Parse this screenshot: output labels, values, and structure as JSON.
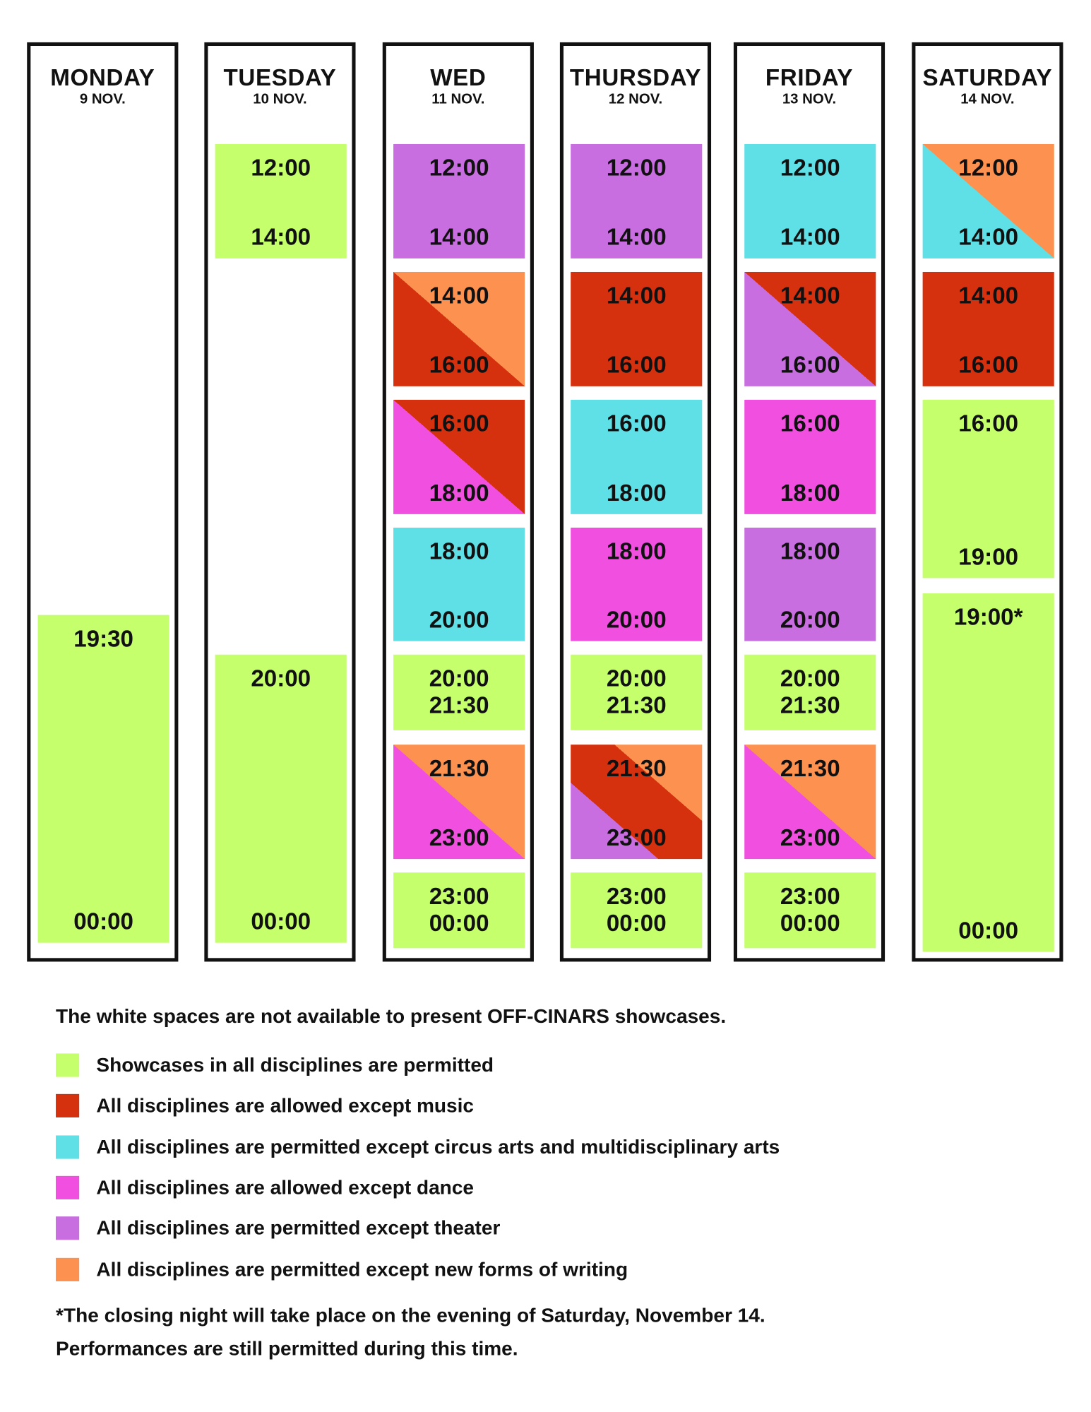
{
  "days": [
    {
      "name": "MONDAY",
      "date": "9 NOV.",
      "slots": [
        {
          "start": "19:30",
          "end": "00:00",
          "colors": [
            "#c5ff6b"
          ]
        }
      ]
    },
    {
      "name": "TUESDAY",
      "date": "10 NOV.",
      "slots": [
        {
          "start": "12:00",
          "end": "14:00",
          "colors": [
            "#c5ff6b"
          ]
        },
        {
          "start": "20:00",
          "end": "00:00",
          "colors": [
            "#c5ff6b"
          ]
        }
      ]
    },
    {
      "name": "WED",
      "date": "11 NOV.",
      "slots": [
        {
          "start": "12:00",
          "end": "14:00",
          "colors": [
            "#c86ee0"
          ]
        },
        {
          "start": "14:00",
          "end": "16:00",
          "colors": [
            "#d6310f",
            "#fd9250"
          ]
        },
        {
          "start": "16:00",
          "end": "18:00",
          "colors": [
            "#f04fdf",
            "#d6310f"
          ]
        },
        {
          "start": "18:00",
          "end": "20:00",
          "colors": [
            "#5ee0e6"
          ]
        },
        {
          "start": "20:00",
          "end": "21:30",
          "colors": [
            "#c5ff6b"
          ]
        },
        {
          "start": "21:30",
          "end": "23:00",
          "colors": [
            "#f04fdf",
            "#fd9250"
          ]
        },
        {
          "start": "23:00",
          "end": "00:00",
          "colors": [
            "#c5ff6b"
          ]
        }
      ]
    },
    {
      "name": "THURSDAY",
      "date": "12 NOV.",
      "slots": [
        {
          "start": "12:00",
          "end": "14:00",
          "colors": [
            "#c86ee0"
          ]
        },
        {
          "start": "14:00",
          "end": "16:00",
          "colors": [
            "#d6310f"
          ]
        },
        {
          "start": "16:00",
          "end": "18:00",
          "colors": [
            "#5ee0e6"
          ]
        },
        {
          "start": "18:00",
          "end": "20:00",
          "colors": [
            "#f04fdf"
          ]
        },
        {
          "start": "20:00",
          "end": "21:30",
          "colors": [
            "#c5ff6b"
          ]
        },
        {
          "start": "21:30",
          "end": "23:00",
          "colors": [
            "#c86ee0",
            "#d6310f",
            "#fd9250"
          ]
        },
        {
          "start": "23:00",
          "end": "00:00",
          "colors": [
            "#c5ff6b"
          ]
        }
      ]
    },
    {
      "name": "FRIDAY",
      "date": "13 NOV.",
      "slots": [
        {
          "start": "12:00",
          "end": "14:00",
          "colors": [
            "#5ee0e6"
          ]
        },
        {
          "start": "14:00",
          "end": "16:00",
          "colors": [
            "#c86ee0",
            "#d6310f"
          ]
        },
        {
          "start": "16:00",
          "end": "18:00",
          "colors": [
            "#f04fdf"
          ]
        },
        {
          "start": "18:00",
          "end": "20:00",
          "colors": [
            "#c86ee0"
          ]
        },
        {
          "start": "20:00",
          "end": "21:30",
          "colors": [
            "#c5ff6b"
          ]
        },
        {
          "start": "21:30",
          "end": "23:00",
          "colors": [
            "#f04fdf",
            "#fd9250"
          ]
        },
        {
          "start": "23:00",
          "end": "00:00",
          "colors": [
            "#c5ff6b"
          ]
        }
      ]
    },
    {
      "name": "SATURDAY",
      "date": "14 NOV.",
      "slots": [
        {
          "start": "12:00",
          "end": "14:00",
          "colors": [
            "#5ee0e6",
            "#fd9250"
          ]
        },
        {
          "start": "14:00",
          "end": "16:00",
          "colors": [
            "#d6310f"
          ]
        },
        {
          "start": "16:00",
          "end": "19:00",
          "colors": [
            "#c5ff6b"
          ]
        },
        {
          "start": "19:00*",
          "end": "00:00",
          "colors": [
            "#c5ff6b"
          ]
        }
      ]
    }
  ],
  "legend": {
    "note": "The white spaces are not available to present OFF-CINARS showcases.",
    "items": [
      {
        "color": "#c5ff6b",
        "label": "Showcases in all disciplines are permitted"
      },
      {
        "color": "#d6310f",
        "label": "All disciplines are allowed except music"
      },
      {
        "color": "#5ee0e6",
        "label": "All disciplines are permitted except circus arts and multidisciplinary arts"
      },
      {
        "color": "#f04fdf",
        "label": "All disciplines are allowed except dance"
      },
      {
        "color": "#c86ee0",
        "label": "All disciplines are permitted except theater"
      },
      {
        "color": "#fd9250",
        "label": "All disciplines are permitted except new forms of writing"
      }
    ]
  },
  "footnote": [
    "*The closing night will take place on the evening of Saturday, November 14.",
    "Performances are still permitted during this time."
  ]
}
